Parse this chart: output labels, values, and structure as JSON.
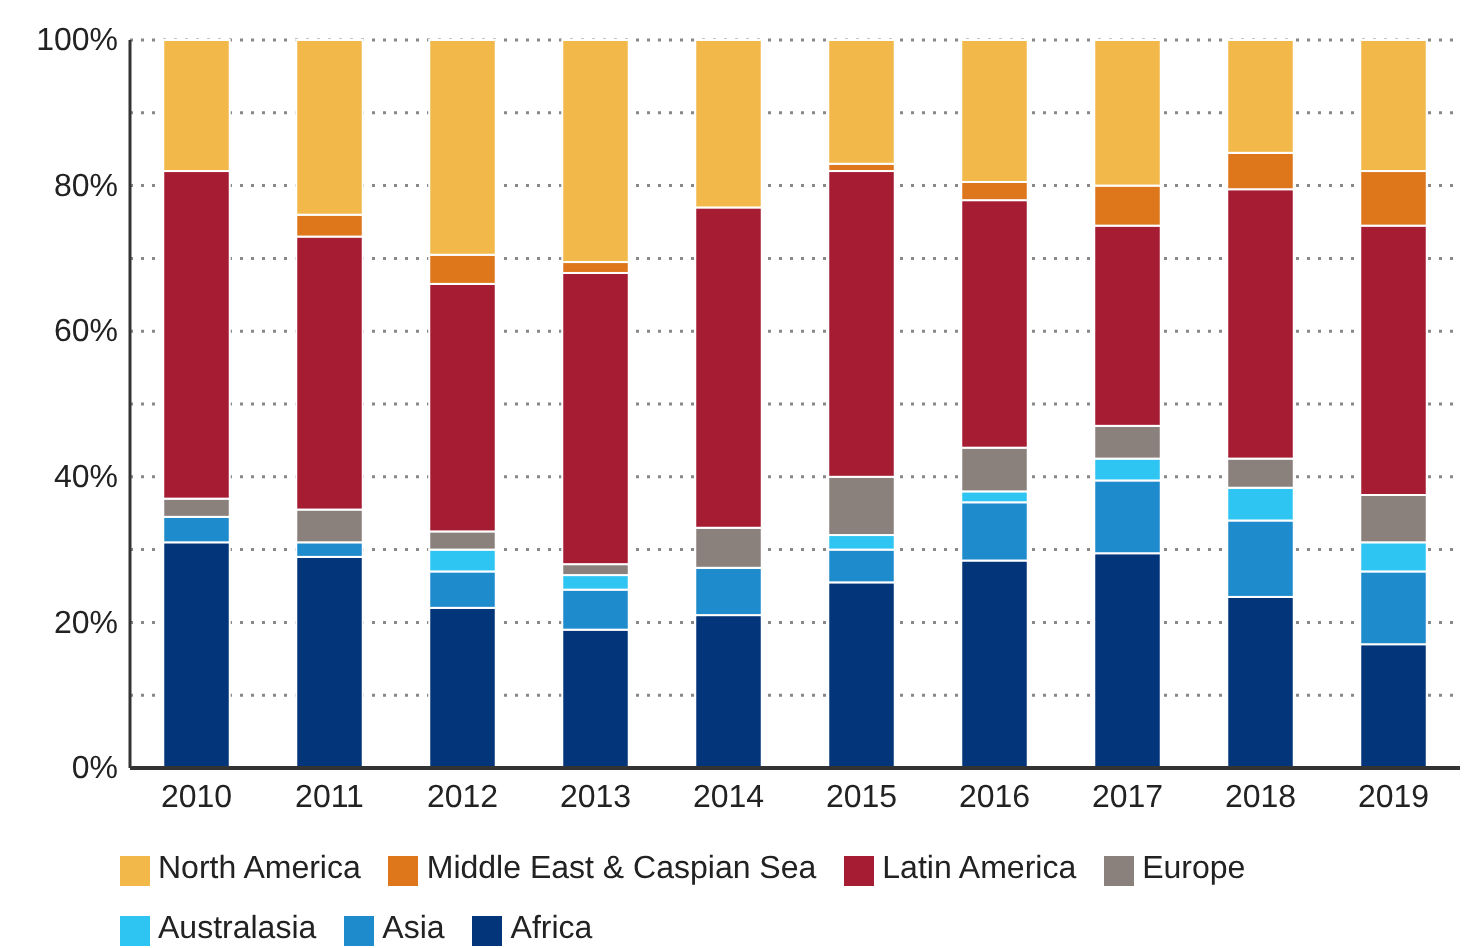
{
  "chart_data": {
    "type": "bar",
    "stacked": true,
    "categories": [
      "2010",
      "2011",
      "2012",
      "2013",
      "2014",
      "2015",
      "2016",
      "2017",
      "2018",
      "2019"
    ],
    "series": [
      {
        "name": "Africa",
        "color": "#03357a",
        "values": [
          31,
          29,
          22,
          19,
          21,
          25.5,
          28.5,
          29.5,
          23.5,
          17
        ]
      },
      {
        "name": "Asia",
        "color": "#1e8bcd",
        "values": [
          3.5,
          2,
          5,
          5.5,
          6.5,
          4.5,
          8,
          10,
          10.5,
          10
        ]
      },
      {
        "name": "Australasia",
        "color": "#2ec5f2",
        "values": [
          0,
          0,
          3,
          2,
          0,
          2,
          1.5,
          3,
          4.5,
          4
        ]
      },
      {
        "name": "Europe",
        "color": "#8a807c",
        "values": [
          2.5,
          4.5,
          2.5,
          1.5,
          5.5,
          8,
          6,
          4.5,
          4,
          6.5
        ]
      },
      {
        "name": "Latin America",
        "color": "#a51c33",
        "values": [
          45,
          37.5,
          34,
          40,
          44,
          42,
          34,
          27.5,
          37,
          37
        ]
      },
      {
        "name": "Middle East & Caspian Sea",
        "color": "#de761c",
        "values": [
          0,
          3,
          4,
          1.5,
          0,
          1,
          2.5,
          5.5,
          5,
          7.5
        ]
      },
      {
        "name": "North America",
        "color": "#f2b94a",
        "values": [
          18,
          24,
          29.5,
          30.5,
          23,
          17,
          19.5,
          20,
          15.5,
          18
        ]
      }
    ],
    "ylim": [
      0,
      100
    ],
    "yticks": [
      {
        "value": 0,
        "label": "0%"
      },
      {
        "value": 10,
        "label": null
      },
      {
        "value": 20,
        "label": "20%"
      },
      {
        "value": 30,
        "label": null
      },
      {
        "value": 40,
        "label": "40%"
      },
      {
        "value": 50,
        "label": null
      },
      {
        "value": 60,
        "label": "60%"
      },
      {
        "value": 70,
        "label": null
      },
      {
        "value": 80,
        "label": "80%"
      },
      {
        "value": 90,
        "label": null
      },
      {
        "value": 100,
        "label": "100%"
      }
    ],
    "grid": "y",
    "legend": "bottom"
  }
}
